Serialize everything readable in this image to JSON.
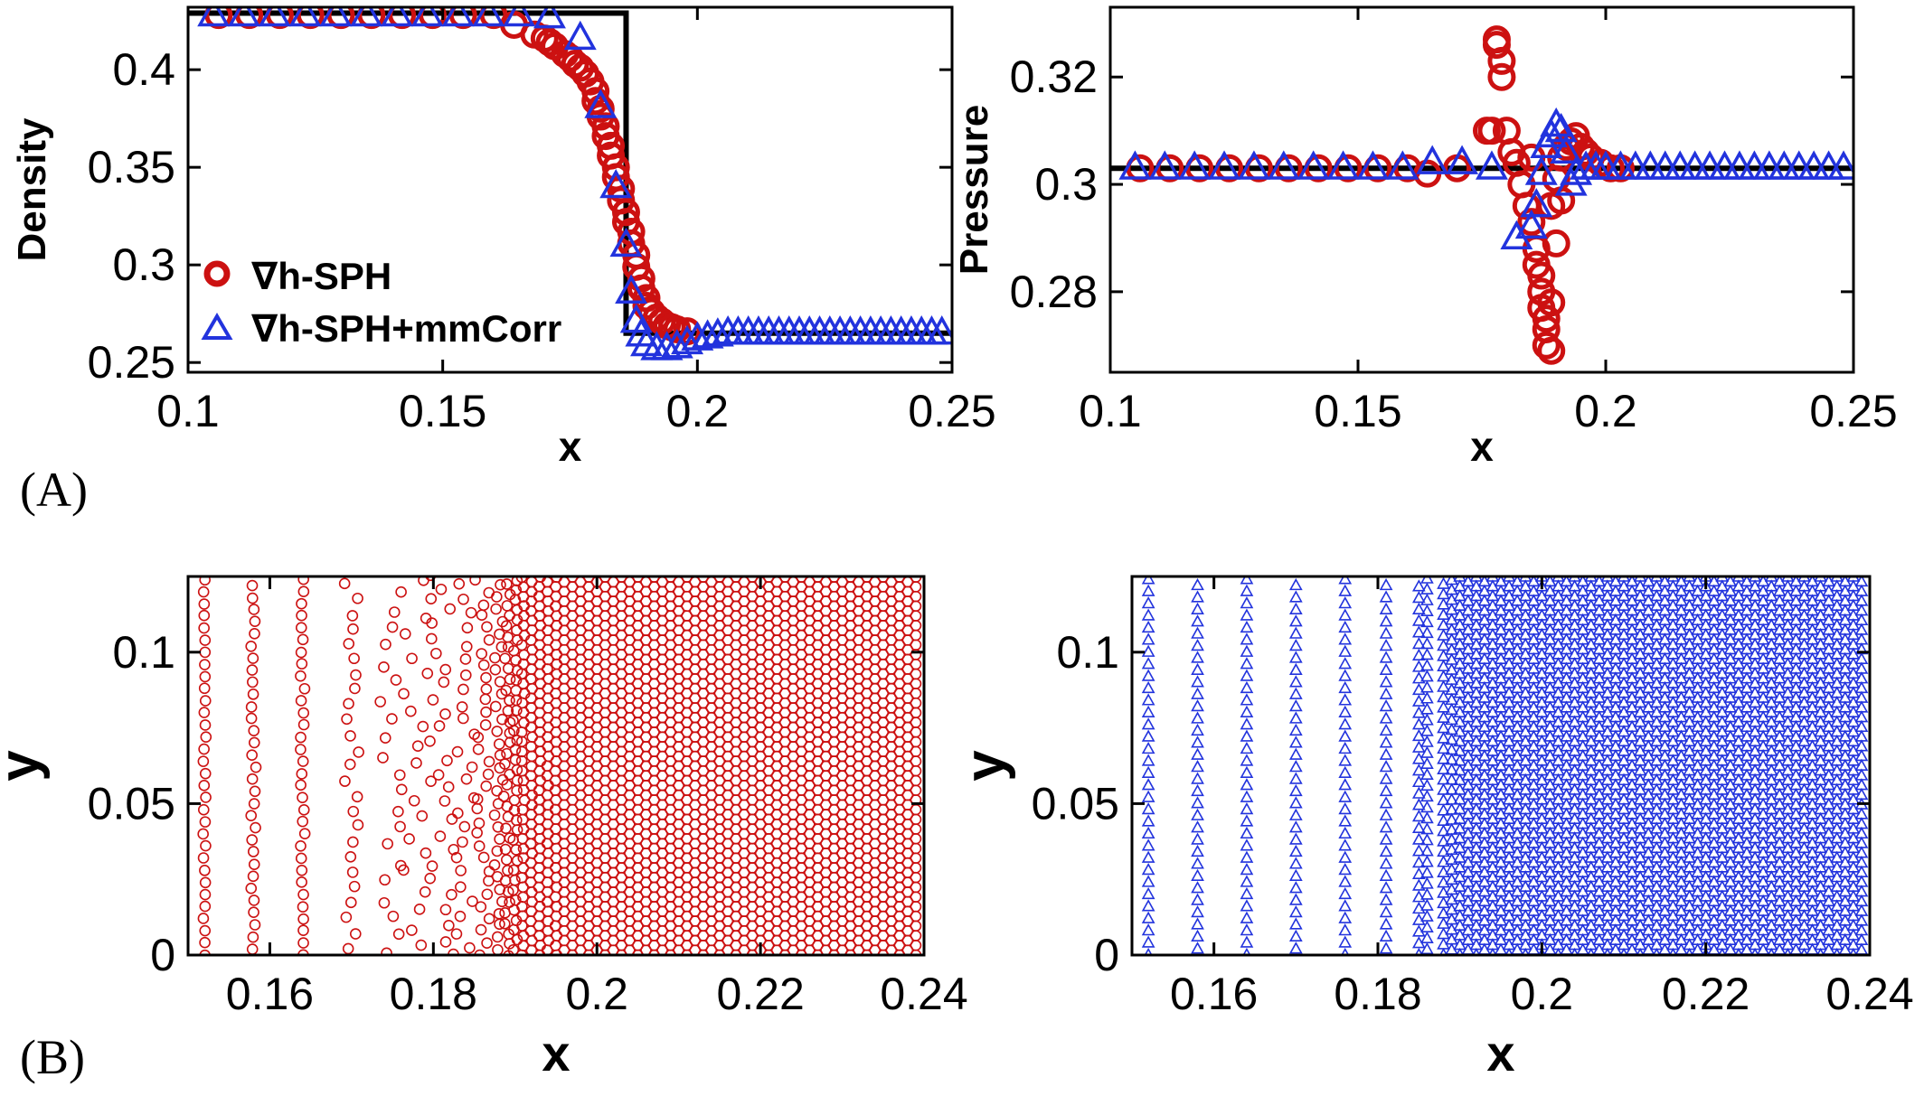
{
  "figure": {
    "panel_labels": [
      "(A)",
      "(B)"
    ]
  },
  "legend": {
    "items": [
      {
        "label": "∇h-SPH",
        "marker": "circle",
        "color": "#cc1111"
      },
      {
        "label": "∇h-SPH+mmCorr",
        "marker": "triangle",
        "color": "#2233dd"
      }
    ]
  },
  "colors": {
    "sph": "#cc1111",
    "mmcorr": "#2233dd",
    "exact": "#000000"
  },
  "chart_data": [
    {
      "id": "density",
      "type": "scatter",
      "title": "",
      "xlabel": "x",
      "ylabel": "Density",
      "xlim": [
        0.1,
        0.25
      ],
      "ylim": [
        0.245,
        0.432
      ],
      "xticks": [
        0.1,
        0.15,
        0.2,
        0.25
      ],
      "yticks": [
        0.25,
        0.3,
        0.35,
        0.4
      ],
      "xtick_labels": [
        "0.1",
        "0.15",
        "0.2",
        "0.25"
      ],
      "ytick_labels": [
        "0.25",
        "0.3",
        "0.35",
        "0.4"
      ],
      "legend_position": "bottom-left",
      "exact": {
        "x": [
          0.1,
          0.186,
          0.186,
          0.25
        ],
        "y": [
          0.429,
          0.429,
          0.265,
          0.265
        ]
      },
      "series": [
        {
          "name": "∇h-SPH",
          "marker": "circle",
          "x": [
            0.106,
            0.112,
            0.118,
            0.124,
            0.13,
            0.136,
            0.142,
            0.148,
            0.154,
            0.16,
            0.164,
            0.168,
            0.17,
            0.171,
            0.172,
            0.174,
            0.175,
            0.176,
            0.177,
            0.178,
            0.179,
            0.18,
            0.18,
            0.181,
            0.181,
            0.182,
            0.182,
            0.183,
            0.183,
            0.184,
            0.184,
            0.185,
            0.185,
            0.186,
            0.186,
            0.187,
            0.187,
            0.188,
            0.188,
            0.189,
            0.189,
            0.19,
            0.19,
            0.191,
            0.192,
            0.193,
            0.194,
            0.195,
            0.196,
            0.198
          ],
          "y": [
            0.428,
            0.428,
            0.428,
            0.428,
            0.428,
            0.428,
            0.428,
            0.428,
            0.428,
            0.428,
            0.423,
            0.418,
            0.416,
            0.414,
            0.412,
            0.408,
            0.406,
            0.403,
            0.401,
            0.398,
            0.394,
            0.389,
            0.384,
            0.38,
            0.376,
            0.371,
            0.366,
            0.361,
            0.356,
            0.35,
            0.345,
            0.339,
            0.333,
            0.327,
            0.322,
            0.317,
            0.311,
            0.305,
            0.299,
            0.293,
            0.288,
            0.283,
            0.279,
            0.276,
            0.273,
            0.271,
            0.269,
            0.268,
            0.267,
            0.266
          ]
        },
        {
          "name": "∇h-SPH+mmCorr",
          "marker": "triangle",
          "x": [
            0.105,
            0.111,
            0.117,
            0.123,
            0.129,
            0.135,
            0.141,
            0.147,
            0.153,
            0.159,
            0.165,
            0.171,
            0.177,
            0.181,
            0.184,
            0.186,
            0.187,
            0.188,
            0.189,
            0.19,
            0.192,
            0.194,
            0.196,
            0.198,
            0.2,
            0.202,
            0.204,
            0.206,
            0.208,
            0.21,
            0.212,
            0.214,
            0.216,
            0.218,
            0.22,
            0.222,
            0.224,
            0.226,
            0.228,
            0.23,
            0.232,
            0.234,
            0.236,
            0.238,
            0.24,
            0.242,
            0.244,
            0.246,
            0.248
          ],
          "y": [
            0.428,
            0.428,
            0.428,
            0.428,
            0.428,
            0.428,
            0.428,
            0.428,
            0.428,
            0.428,
            0.428,
            0.427,
            0.416,
            0.381,
            0.34,
            0.31,
            0.286,
            0.271,
            0.264,
            0.259,
            0.257,
            0.257,
            0.258,
            0.26,
            0.262,
            0.263,
            0.264,
            0.265,
            0.265,
            0.265,
            0.265,
            0.265,
            0.265,
            0.265,
            0.265,
            0.265,
            0.265,
            0.265,
            0.265,
            0.265,
            0.265,
            0.265,
            0.265,
            0.265,
            0.265,
            0.265,
            0.265,
            0.265,
            0.265
          ]
        }
      ]
    },
    {
      "id": "pressure",
      "type": "scatter",
      "title": "",
      "xlabel": "x",
      "ylabel": "Pressure",
      "xlim": [
        0.1,
        0.25
      ],
      "ylim": [
        0.265,
        0.333
      ],
      "xticks": [
        0.1,
        0.15,
        0.2,
        0.25
      ],
      "yticks": [
        0.28,
        0.3,
        0.32
      ],
      "xtick_labels": [
        "0.1",
        "0.15",
        "0.2",
        "0.25"
      ],
      "ytick_labels": [
        "0.28",
        "0.3",
        "0.32"
      ],
      "exact": {
        "x": [
          0.1,
          0.25
        ],
        "y": [
          0.303,
          0.303
        ]
      },
      "series": [
        {
          "name": "∇h-SPH",
          "marker": "circle",
          "x": [
            0.106,
            0.112,
            0.118,
            0.124,
            0.13,
            0.136,
            0.142,
            0.148,
            0.154,
            0.16,
            0.164,
            0.17,
            0.176,
            0.177,
            0.178,
            0.178,
            0.179,
            0.179,
            0.18,
            0.181,
            0.182,
            0.183,
            0.184,
            0.185,
            0.185,
            0.186,
            0.186,
            0.187,
            0.187,
            0.187,
            0.188,
            0.188,
            0.188,
            0.189,
            0.189,
            0.189,
            0.19,
            0.19,
            0.191,
            0.191,
            0.192,
            0.193,
            0.194,
            0.195,
            0.196,
            0.197,
            0.199,
            0.201,
            0.203
          ],
          "y": [
            0.303,
            0.303,
            0.303,
            0.303,
            0.303,
            0.303,
            0.303,
            0.303,
            0.303,
            0.303,
            0.302,
            0.303,
            0.31,
            0.31,
            0.327,
            0.326,
            0.323,
            0.32,
            0.31,
            0.306,
            0.304,
            0.3,
            0.296,
            0.305,
            0.293,
            0.288,
            0.285,
            0.283,
            0.28,
            0.277,
            0.275,
            0.273,
            0.27,
            0.269,
            0.278,
            0.296,
            0.289,
            0.301,
            0.297,
            0.305,
            0.307,
            0.308,
            0.309,
            0.307,
            0.306,
            0.305,
            0.304,
            0.303,
            0.303
          ]
        },
        {
          "name": "∇h-SPH+mmCorr",
          "marker": "triangle",
          "x": [
            0.105,
            0.111,
            0.117,
            0.123,
            0.129,
            0.135,
            0.141,
            0.147,
            0.153,
            0.159,
            0.165,
            0.171,
            0.177,
            0.182,
            0.185,
            0.186,
            0.187,
            0.188,
            0.189,
            0.19,
            0.191,
            0.192,
            0.193,
            0.194,
            0.196,
            0.198,
            0.2,
            0.203,
            0.206,
            0.209,
            0.212,
            0.215,
            0.218,
            0.221,
            0.224,
            0.227,
            0.23,
            0.233,
            0.236,
            0.239,
            0.242,
            0.245,
            0.248
          ],
          "y": [
            0.303,
            0.303,
            0.303,
            0.303,
            0.303,
            0.303,
            0.303,
            0.303,
            0.303,
            0.303,
            0.304,
            0.304,
            0.303,
            0.29,
            0.292,
            0.296,
            0.302,
            0.307,
            0.309,
            0.311,
            0.31,
            0.306,
            0.3,
            0.302,
            0.303,
            0.303,
            0.303,
            0.303,
            0.303,
            0.303,
            0.303,
            0.303,
            0.303,
            0.303,
            0.303,
            0.303,
            0.303,
            0.303,
            0.303,
            0.303,
            0.303,
            0.303,
            0.303
          ]
        }
      ]
    },
    {
      "id": "particles-sph",
      "type": "scatter",
      "title": "",
      "xlabel": "x",
      "ylabel": "y",
      "xlim": [
        0.15,
        0.24
      ],
      "ylim": [
        0,
        0.125
      ],
      "xticks": [
        0.16,
        0.18,
        0.2,
        0.22,
        0.24
      ],
      "yticks": [
        0,
        0.05,
        0.1
      ],
      "xtick_labels": [
        "0.16",
        "0.18",
        "0.2",
        "0.22",
        "0.24"
      ],
      "ytick_labels": [
        "0",
        "0.05",
        "0.1"
      ],
      "series": [
        {
          "name": "∇h-SPH",
          "marker": "circle",
          "column_x": [
            0.152,
            0.158,
            0.164,
            0.17,
            0.175,
            0.178,
            0.181,
            0.184,
            0.186,
            0.188,
            0.189,
            0.19,
            0.191,
            0.192,
            0.193,
            0.194,
            0.195,
            0.196,
            0.197,
            0.198,
            0.199,
            0.2,
            0.201,
            0.202,
            0.203,
            0.204,
            0.205,
            0.206,
            0.207,
            0.208,
            0.209,
            0.21,
            0.211,
            0.212,
            0.213,
            0.214,
            0.215,
            0.216,
            0.217,
            0.218,
            0.219,
            0.22,
            0.221,
            0.222,
            0.223,
            0.224,
            0.225,
            0.226,
            0.227,
            0.228,
            0.229,
            0.23,
            0.231,
            0.232,
            0.233,
            0.234,
            0.235,
            0.236,
            0.237,
            0.238,
            0.239
          ],
          "column_dy": [
            0.004,
            0.004,
            0.004,
            0.005,
            0.006,
            0.006,
            0.005,
            0.005,
            0.004,
            0.004,
            0.0035,
            0.0033,
            0.0032,
            0.0032,
            0.0032,
            0.0032,
            0.0032,
            0.0032,
            0.0032,
            0.0032,
            0.0032,
            0.0032,
            0.0032,
            0.0032,
            0.0032,
            0.0032,
            0.0032,
            0.0032,
            0.0032,
            0.0032,
            0.0032,
            0.0032,
            0.0032,
            0.0032,
            0.0032,
            0.0032,
            0.0032,
            0.0032,
            0.0032,
            0.0032,
            0.0032,
            0.0032,
            0.0032,
            0.0032,
            0.0032,
            0.0032,
            0.0032,
            0.0032,
            0.0032,
            0.0032,
            0.0032,
            0.0032,
            0.0032,
            0.0032,
            0.0032,
            0.0032,
            0.0032,
            0.0032,
            0.0032,
            0.0032,
            0.0032
          ],
          "column_jitter": [
            0.0002,
            0.0003,
            0.0003,
            0.0009,
            0.0017,
            0.0018,
            0.0015,
            0.0012,
            0.0009,
            0.0006,
            0.0004,
            0.0003,
            0.0002,
            0.0001,
            0.0001,
            0.0001,
            0.0001,
            0,
            0,
            0,
            0,
            0,
            0,
            0,
            0,
            0,
            0,
            0,
            0,
            0,
            0,
            0,
            0,
            0,
            0,
            0,
            0,
            0,
            0,
            0,
            0,
            0,
            0,
            0,
            0,
            0,
            0,
            0,
            0,
            0,
            0,
            0,
            0,
            0,
            0,
            0,
            0,
            0,
            0,
            0,
            0
          ]
        }
      ]
    },
    {
      "id": "particles-mmcorr",
      "type": "scatter",
      "title": "",
      "xlabel": "x",
      "ylabel": "y",
      "xlim": [
        0.15,
        0.24
      ],
      "ylim": [
        0,
        0.125
      ],
      "xticks": [
        0.16,
        0.18,
        0.2,
        0.22,
        0.24
      ],
      "yticks": [
        0,
        0.05,
        0.1
      ],
      "xtick_labels": [
        "0.16",
        "0.18",
        "0.2",
        "0.22",
        "0.24"
      ],
      "ytick_labels": [
        "0",
        "0.05",
        "0.1"
      ],
      "series": [
        {
          "name": "∇h-SPH+mmCorr",
          "marker": "triangle",
          "column_x": [
            0.152,
            0.158,
            0.164,
            0.17,
            0.176,
            0.181,
            0.185,
            0.186,
            0.188,
            0.189,
            0.19,
            0.191,
            0.192,
            0.193,
            0.194,
            0.195,
            0.196,
            0.197,
            0.198,
            0.199,
            0.2,
            0.201,
            0.202,
            0.203,
            0.204,
            0.205,
            0.206,
            0.207,
            0.208,
            0.209,
            0.21,
            0.211,
            0.212,
            0.213,
            0.214,
            0.215,
            0.216,
            0.217,
            0.218,
            0.219,
            0.22,
            0.221,
            0.222,
            0.223,
            0.224,
            0.225,
            0.226,
            0.227,
            0.228,
            0.229,
            0.23,
            0.231,
            0.232,
            0.233,
            0.234,
            0.235,
            0.236,
            0.237,
            0.238,
            0.239
          ],
          "column_dy": [
            0.004,
            0.004,
            0.004,
            0.004,
            0.004,
            0.004,
            0.0038,
            0.0036,
            0.0034,
            0.0033,
            0.0032,
            0.0032,
            0.0032,
            0.0032,
            0.0032,
            0.0032,
            0.0032,
            0.0032,
            0.0032,
            0.0032,
            0.0032,
            0.0032,
            0.0032,
            0.0032,
            0.0032,
            0.0032,
            0.0032,
            0.0032,
            0.0032,
            0.0032,
            0.0032,
            0.0032,
            0.0032,
            0.0032,
            0.0032,
            0.0032,
            0.0032,
            0.0032,
            0.0032,
            0.0032,
            0.0032,
            0.0032,
            0.0032,
            0.0032,
            0.0032,
            0.0032,
            0.0032,
            0.0032,
            0.0032,
            0.0032,
            0.0032,
            0.0032,
            0.0032,
            0.0032,
            0.0032,
            0.0032,
            0.0032,
            0.0032,
            0.0032,
            0.0032
          ]
        }
      ]
    }
  ]
}
